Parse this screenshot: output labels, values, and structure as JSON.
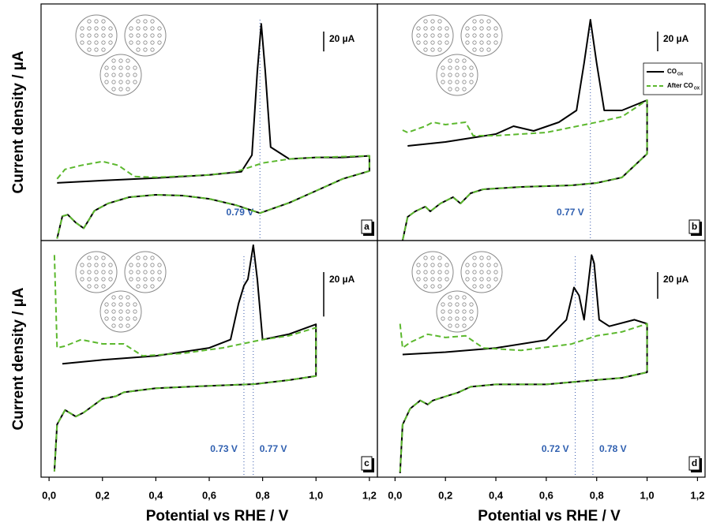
{
  "chart_data": [
    {
      "type": "line",
      "label": "a",
      "ylabel": "Current density / µA",
      "xlim": [
        -0.03,
        1.23
      ],
      "ylim": [
        -118,
        120
      ],
      "scale_bar": {
        "value": 20,
        "label": "20 µA"
      },
      "annotations": [
        {
          "text": "0.79 V",
          "x": 0.79
        }
      ],
      "series": [
        {
          "color": "#000000",
          "x": [
            0.03,
            0.2,
            0.4,
            0.6,
            0.72,
            0.76,
            0.78,
            0.795,
            0.81,
            0.83,
            0.9,
            1.0,
            1.1,
            1.2,
            1.2,
            1.1,
            1.0,
            0.9,
            0.79,
            0.7,
            0.6,
            0.5,
            0.4,
            0.3,
            0.22,
            0.17,
            0.13,
            0.1,
            0.07,
            0.05,
            0.03
          ],
          "values": [
            -60,
            -57.6,
            -55.2,
            -52,
            -48.8,
            -32,
            52,
            100,
            52,
            -24,
            -36,
            -34.4,
            -34.4,
            -32.8,
            -48,
            -56,
            -68,
            -80,
            -90.4,
            -82.4,
            -76,
            -72.8,
            -72,
            -74.4,
            -80.8,
            -88,
            -105.6,
            -100,
            -92,
            -93.6,
            -116
          ]
        },
        {
          "color": "#5cb82e",
          "dash": true,
          "x": [
            0.03,
            0.06,
            0.12,
            0.2,
            0.26,
            0.32,
            0.4,
            0.6,
            0.7,
            0.8,
            0.9,
            1.0,
            1.2,
            1.2,
            1.1,
            1.0,
            0.9,
            0.79,
            0.7,
            0.6,
            0.5,
            0.4,
            0.3,
            0.22,
            0.17,
            0.13,
            0.1,
            0.07,
            0.05,
            0.03
          ],
          "values": [
            -56,
            -46.4,
            -42.4,
            -38.4,
            -42.4,
            -53.6,
            -54.4,
            -52,
            -48.8,
            -40,
            -36,
            -34.4,
            -32.8,
            -48,
            -56,
            -68,
            -80,
            -90.4,
            -82.4,
            -76,
            -72.8,
            -72,
            -74.4,
            -80.8,
            -88,
            -105.6,
            -100,
            -92,
            -93.6,
            -116
          ]
        }
      ]
    },
    {
      "type": "line",
      "label": "b",
      "legend": "upper right",
      "xlim": [
        -0.07,
        1.23
      ],
      "ylim": [
        -120,
        120
      ],
      "scale_bar": {
        "value": 20,
        "label": "20 µA"
      },
      "annotations": [
        {
          "text": "0.77 V",
          "x": 0.775
        }
      ],
      "series": [
        {
          "name": "CO",
          "subscript": "OX",
          "color": "#000000",
          "x": [
            0.05,
            0.2,
            0.4,
            0.47,
            0.55,
            0.65,
            0.72,
            0.75,
            0.775,
            0.8,
            0.83,
            0.9,
            1.0,
            1.0,
            0.9,
            0.8,
            0.7,
            0.5,
            0.35,
            0.3,
            0.26,
            0.23,
            0.18,
            0.14,
            0.12,
            0.08,
            0.05,
            0.03
          ],
          "values": [
            -24,
            -20,
            -12,
            -4,
            -8.8,
            0,
            12,
            60,
            104,
            60,
            12,
            12,
            22.4,
            -32,
            -56,
            -61.6,
            -64,
            -65.6,
            -68,
            -72,
            -82.4,
            -76,
            -82.4,
            -90.4,
            -85.6,
            -90.4,
            -96,
            -120
          ]
        },
        {
          "name": "After CO",
          "subscript": "OX",
          "color": "#5cb82e",
          "dash": true,
          "x": [
            0.03,
            0.05,
            0.12,
            0.15,
            0.2,
            0.28,
            0.31,
            0.4,
            0.6,
            0.8,
            0.9,
            1.0,
            1.0,
            0.9,
            0.8,
            0.7,
            0.5,
            0.35,
            0.3,
            0.26,
            0.23,
            0.18,
            0.14,
            0.12,
            0.08,
            0.05,
            0.03
          ],
          "values": [
            -8,
            -10.4,
            -4,
            0,
            -2.4,
            0,
            -13.6,
            -13.6,
            -10.4,
            0,
            5.6,
            22.4,
            -32,
            -56,
            -61.6,
            -64,
            -65.6,
            -68,
            -72,
            -82.4,
            -76,
            -82.4,
            -90.4,
            -85.6,
            -90.4,
            -96,
            -120
          ]
        }
      ]
    },
    {
      "type": "line",
      "label": "c",
      "ylabel": "Current density / µA",
      "xlabel": "Potential vs RHE / V",
      "xlim": [
        -0.03,
        1.23
      ],
      "ylim": [
        -53.5,
        53
      ],
      "xticks": [
        {
          "value": 0,
          "label": "0,0"
        },
        {
          "value": 0.2,
          "label": "0,2"
        },
        {
          "value": 0.4,
          "label": "0,4"
        },
        {
          "value": 0.6,
          "label": "0,6"
        },
        {
          "value": 0.8,
          "label": "0,8"
        },
        {
          "value": 1.0,
          "label": "1,0"
        },
        {
          "value": 1.2,
          "label": "1,2"
        }
      ],
      "scale_bar": {
        "value": 20,
        "label": "20 µA"
      },
      "annotations": [
        {
          "text": "0.73 V",
          "x": 0.73
        },
        {
          "text": "0.77 V",
          "x": 0.765
        }
      ],
      "series": [
        {
          "color": "#000000",
          "x": [
            0.05,
            0.2,
            0.4,
            0.6,
            0.68,
            0.71,
            0.73,
            0.745,
            0.765,
            0.78,
            0.8,
            0.9,
            1.0,
            1.0,
            0.9,
            0.77,
            0.6,
            0.4,
            0.28,
            0.25,
            0.2,
            0.13,
            0.1,
            0.06,
            0.03,
            0.02
          ],
          "values": [
            -2.5,
            -0.7,
            1.1,
            4.7,
            8.4,
            24.7,
            32.7,
            35.6,
            50.9,
            35.6,
            8.4,
            10.9,
            15.3,
            -8,
            -9.8,
            -11.6,
            -12.4,
            -13.5,
            -15.3,
            -17.1,
            -18.2,
            -24.4,
            -26.2,
            -23.3,
            -29.8,
            -50.9
          ]
        },
        {
          "color": "#5cb82e",
          "dash": true,
          "x": [
            0.02,
            0.03,
            0.06,
            0.12,
            0.2,
            0.28,
            0.35,
            0.5,
            0.65,
            0.8,
            0.9,
            1.0,
            1.0,
            0.9,
            0.77,
            0.6,
            0.4,
            0.28,
            0.25,
            0.2,
            0.13,
            0.1,
            0.06,
            0.03,
            0.02
          ],
          "values": [
            46.5,
            4.7,
            5.5,
            8.4,
            6.5,
            6.5,
            1.1,
            2.2,
            4.7,
            8.4,
            10.2,
            13.8,
            -8,
            -9.8,
            -11.6,
            -12.4,
            -13.5,
            -15.3,
            -17.1,
            -18.2,
            -24.4,
            -26.2,
            -23.3,
            -29.8,
            -50.9
          ]
        }
      ]
    },
    {
      "type": "line",
      "label": "d",
      "xlabel": "Potential vs RHE / V",
      "xlim": [
        -0.07,
        1.23
      ],
      "ylim": [
        -89,
        88.5
      ],
      "xticks": [
        {
          "value": 0,
          "label": "0,0"
        },
        {
          "value": 0.2,
          "label": "0,2"
        },
        {
          "value": 0.4,
          "label": "0,4"
        },
        {
          "value": 0.6,
          "label": "0,6"
        },
        {
          "value": 0.8,
          "label": "0,8"
        },
        {
          "value": 1.0,
          "label": "1,0"
        },
        {
          "value": 1.2,
          "label": "1,2"
        }
      ],
      "scale_bar": {
        "value": 20,
        "label": "20 µA"
      },
      "annotations": [
        {
          "text": "0.72 V",
          "x": 0.715
        },
        {
          "text": "0.78 V",
          "x": 0.785
        }
      ],
      "series": [
        {
          "color": "#000000",
          "x": [
            0.03,
            0.2,
            0.4,
            0.6,
            0.68,
            0.71,
            0.73,
            0.75,
            0.78,
            0.79,
            0.81,
            0.85,
            0.95,
            1.0,
            1.0,
            0.9,
            0.78,
            0.6,
            0.4,
            0.3,
            0.25,
            0.2,
            0.15,
            0.13,
            0.1,
            0.06,
            0.03,
            0.02
          ],
          "values": [
            3,
            4.8,
            7.9,
            13.9,
            29.1,
            53.3,
            47.3,
            29.1,
            77.6,
            71.5,
            29.1,
            24.2,
            29.1,
            26.1,
            -10.3,
            -14.5,
            -16.4,
            -19.4,
            -19.4,
            -21.2,
            -25.5,
            -28.5,
            -31.5,
            -34.5,
            -31.5,
            -37.6,
            -49.7,
            -86
          ]
        },
        {
          "color": "#5cb82e",
          "dash": true,
          "x": [
            0.02,
            0.03,
            0.06,
            0.13,
            0.2,
            0.28,
            0.35,
            0.5,
            0.7,
            0.8,
            0.9,
            1.0,
            1.0,
            0.9,
            0.78,
            0.6,
            0.4,
            0.3,
            0.25,
            0.2,
            0.15,
            0.13,
            0.1,
            0.06,
            0.03,
            0.02
          ],
          "values": [
            26.1,
            7.9,
            12.1,
            18.2,
            15.8,
            17,
            7.9,
            6.1,
            10.9,
            17,
            20,
            26.1,
            -10.3,
            -14.5,
            -16.4,
            -19.4,
            -19.4,
            -21.2,
            -25.5,
            -28.5,
            -31.5,
            -34.5,
            -31.5,
            -37.6,
            -49.7,
            -86
          ]
        }
      ]
    }
  ]
}
